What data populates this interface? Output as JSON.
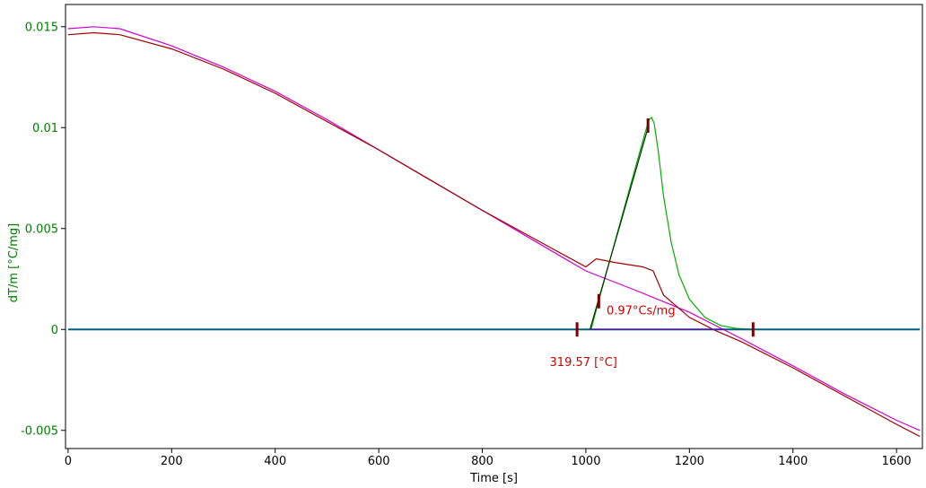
{
  "chart_data": {
    "type": "line",
    "xlabel": "Time [s]",
    "ylabel": "dT/m  [°C/mg]",
    "xlim": [
      -5,
      1650
    ],
    "ylim": [
      -0.0059,
      0.0161
    ],
    "x_ticks": [
      0,
      200,
      400,
      600,
      800,
      1000,
      1200,
      1400,
      1600
    ],
    "y_ticks": [
      -0.005,
      0,
      0.005,
      0.01,
      0.015
    ],
    "x_tick_labels": [
      "0",
      "200",
      "400",
      "600",
      "800",
      "1000",
      "1200",
      "1400",
      "1600"
    ],
    "y_tick_labels": [
      "-0.005",
      "0",
      "0.005",
      "0.01",
      "0.015"
    ],
    "grid": false,
    "series": [
      {
        "color": "#d000d0",
        "x": [
          0,
          50,
          100,
          200,
          300,
          400,
          500,
          600,
          700,
          800,
          900,
          1000,
          1100,
          1200,
          1300,
          1400,
          1500,
          1600,
          1645
        ],
        "y": [
          0.0149,
          0.015,
          0.0149,
          0.01405,
          0.013,
          0.0118,
          0.0104,
          0.0089,
          0.0074,
          0.0059,
          0.0044,
          0.0029,
          0.0019,
          0.00085,
          -0.00045,
          -0.0018,
          -0.0032,
          -0.0045,
          -0.005
        ]
      },
      {
        "color": "#a00000",
        "x": [
          0,
          50,
          100,
          200,
          300,
          400,
          500,
          600,
          700,
          800,
          900,
          1000,
          1020,
          1060,
          1110,
          1130,
          1150,
          1200,
          1250,
          1300,
          1400,
          1500,
          1600,
          1645
        ],
        "y": [
          0.0146,
          0.0147,
          0.0146,
          0.0139,
          0.0129,
          0.0117,
          0.0103,
          0.0089,
          0.0074,
          0.0059,
          0.0045,
          0.0031,
          0.0035,
          0.0033,
          0.0031,
          0.0029,
          0.0017,
          0.0006,
          -5e-05,
          -0.0006,
          -0.0019,
          -0.0033,
          -0.0047,
          -0.0053
        ]
      },
      {
        "color": "#00b000",
        "x": [
          1010,
          1030,
          1060,
          1090,
          1115,
          1122,
          1127,
          1132,
          1140,
          1150,
          1165,
          1180,
          1200,
          1230,
          1260,
          1290,
          1330,
          1645
        ],
        "y": [
          0.0,
          0.0019,
          0.0047,
          0.0075,
          0.0098,
          0.0104,
          0.0105,
          0.0102,
          0.0088,
          0.0066,
          0.0043,
          0.0027,
          0.0015,
          0.0006,
          0.0002,
          5e-05,
          0.0,
          0.0
        ]
      },
      {
        "color": "#006080",
        "x": [
          0,
          1645
        ],
        "y": [
          0.0,
          0.0
        ]
      },
      {
        "color": "#7000b0",
        "x": [
          1010,
          1270
        ],
        "y": [
          0.0,
          0.0
        ]
      },
      {
        "color": "#003000",
        "x": [
          1008,
          1120
        ],
        "y": [
          0.0,
          0.01
        ]
      }
    ],
    "markers": [
      {
        "x": 983,
        "y": 0.0
      },
      {
        "x": 1025,
        "y": 0.0014
      },
      {
        "x": 1120,
        "y": 0.0101
      },
      {
        "x": 1323,
        "y": 0.0
      }
    ],
    "annotations": [
      {
        "text": "0.97°Cs/mg",
        "x": 1040,
        "y": 0.00075
      },
      {
        "text": "319.57 [°C]",
        "x": 930,
        "y": -0.0018
      }
    ]
  }
}
